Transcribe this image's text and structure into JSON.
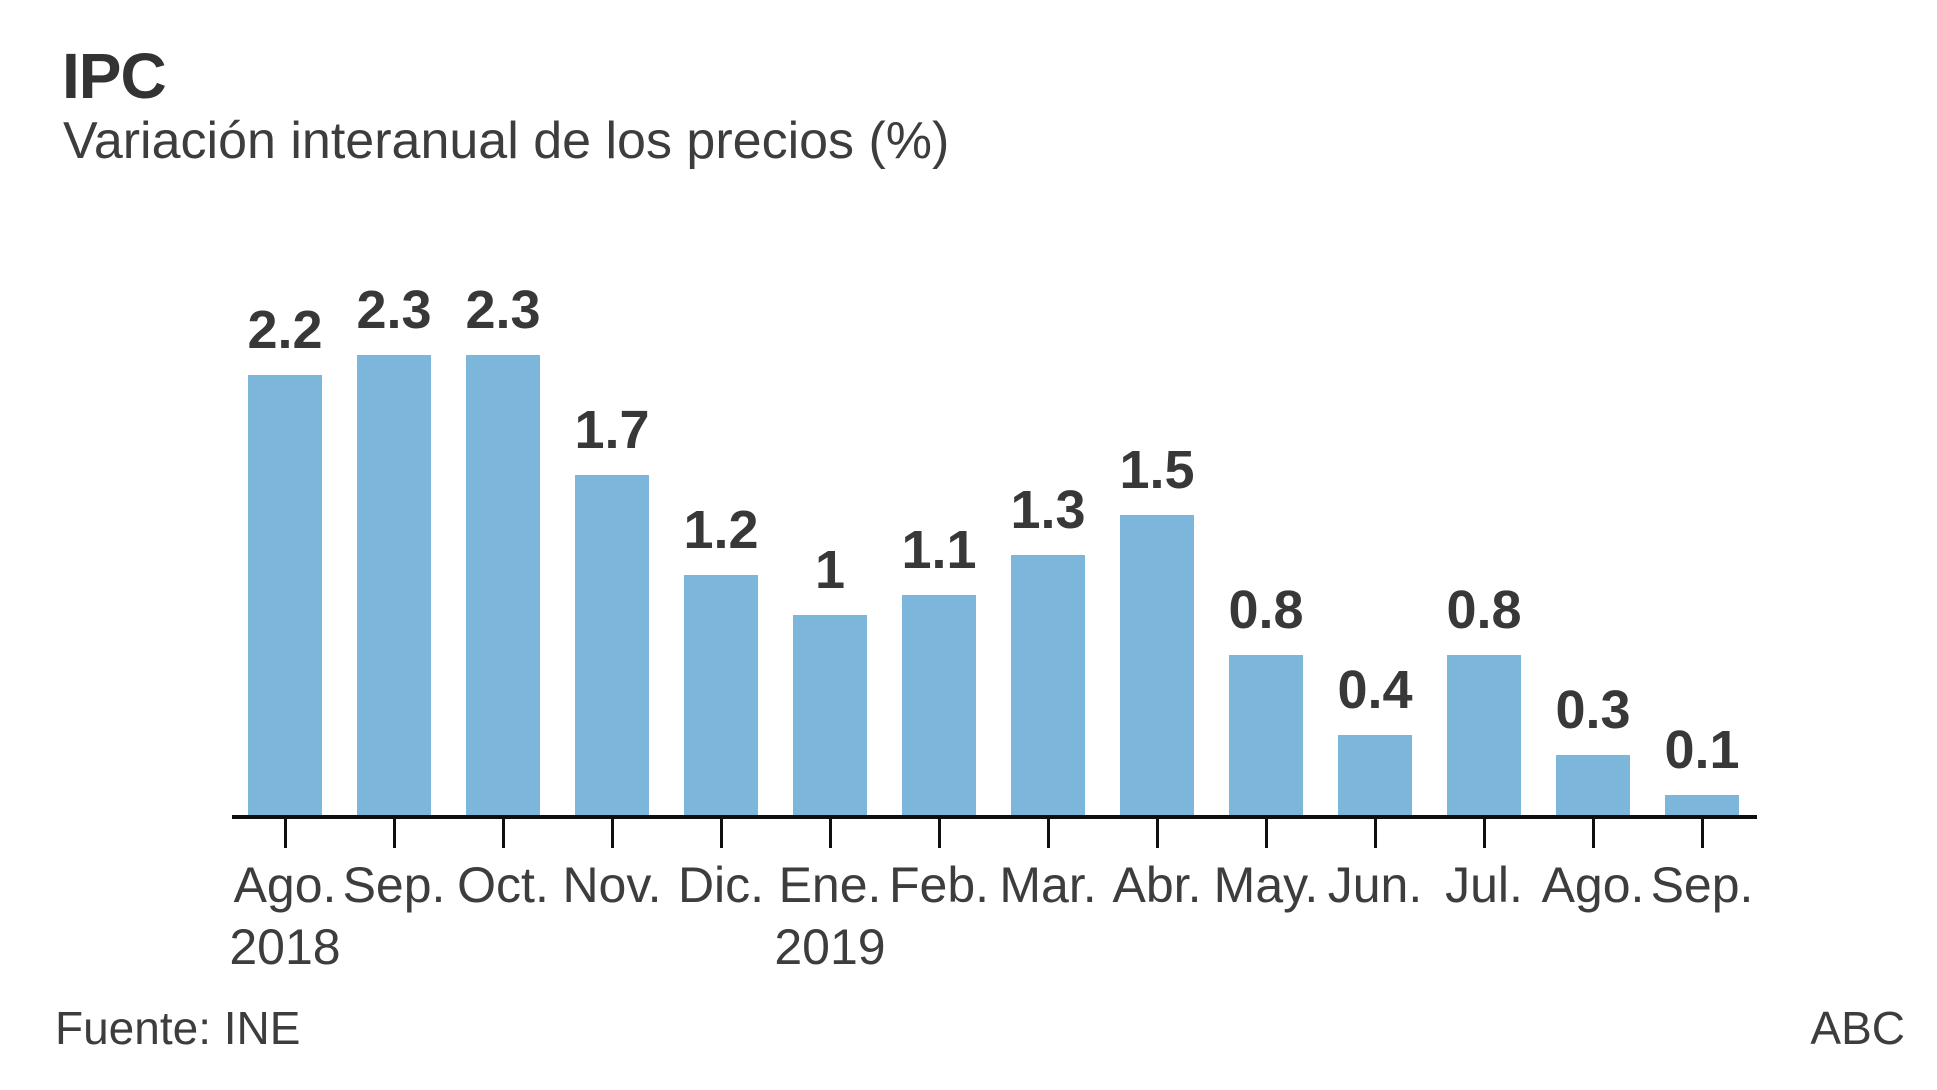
{
  "header": {
    "title": "IPC",
    "subtitle": "Variación interanual de los precios (%)"
  },
  "footer": {
    "source": "Fuente: INE",
    "credit": "ABC"
  },
  "colors": {
    "bar_blue": "#7db6db",
    "axis_black": "#0f0f0f",
    "text_dark": "#333333",
    "text_gray": "#3d3d3d"
  },
  "chart_data": {
    "type": "bar",
    "title": "IPC",
    "subtitle": "Variación interanual de los precios (%)",
    "categories": [
      "Ago.",
      "Sep.",
      "Oct.",
      "Nov.",
      "Dic.",
      "Ene.",
      "Feb.",
      "Mar.",
      "Abr.",
      "May.",
      "Jun.",
      "Jul.",
      "Ago.",
      "Sep."
    ],
    "year_labels": {
      "0": "2018",
      "5": "2019"
    },
    "values": [
      2.2,
      2.3,
      2.3,
      1.7,
      1.2,
      1,
      1.1,
      1.3,
      1.5,
      0.8,
      0.4,
      0.8,
      0.3,
      0.1
    ],
    "value_labels": [
      "2.2",
      "2.3",
      "2.3",
      "1.7",
      "1.2",
      "1",
      "1.1",
      "1.3",
      "1.5",
      "0.8",
      "0.4",
      "0.8",
      "0.3",
      "0.1"
    ],
    "xlabel": "",
    "ylabel": "",
    "ylim": [
      0,
      2.5
    ],
    "grid": false,
    "legend": false,
    "bar_color": "#7db6db",
    "source": "Fuente: INE",
    "credit": "ABC"
  }
}
